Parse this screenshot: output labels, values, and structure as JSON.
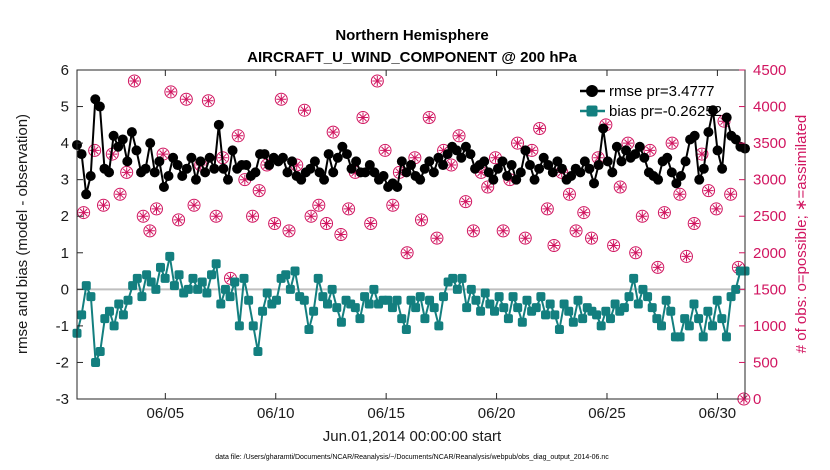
{
  "chart_data": {
    "type": "line",
    "title": "Northern Hemisphere",
    "subtitle": "AIRCRAFT_U_WIND_COMPONENT @ 200 hPa",
    "xlabel": "Jun.01,2014 00:00:00 start",
    "ylabel": "rmse and bias (model - observation)",
    "ylabel_right": "# of obs: o=possible; ∗=assimilated",
    "footer": "data file: /Users/gharamti/Documents/NCAR/Reanalysis/~/Documents/NCAR/Reanalysis/webpub/obs_diag_output_2014-06.nc",
    "xlim": [
      1.0,
      31.25
    ],
    "ylim": [
      -3,
      6
    ],
    "ylim_right": [
      0,
      4500
    ],
    "x_ticks": [
      5,
      10,
      15,
      20,
      25,
      30
    ],
    "x_tick_labels": [
      "06/05",
      "06/10",
      "06/15",
      "06/20",
      "06/25",
      "06/30"
    ],
    "y_ticks": [
      -3,
      -2,
      -1,
      0,
      1,
      2,
      3,
      4,
      5,
      6
    ],
    "y_ticks_right": [
      0,
      500,
      1000,
      1500,
      2000,
      2500,
      3000,
      3500,
      4000,
      4500
    ],
    "zero_line": 0,
    "colors": {
      "rmse": "#000000",
      "bias": "#137f7f",
      "obs": "#d11560",
      "zero": "#bfbfbf"
    },
    "legend": {
      "position": "top-right",
      "entries": [
        "rmse pr=3.4777",
        "bias pr=-0.26252"
      ]
    },
    "series": [
      {
        "name": "rmse",
        "values": [
          3.95,
          3.7,
          2.6,
          3.1,
          5.2,
          5.0,
          3.3,
          3.2,
          4.2,
          3.9,
          4.1,
          3.5,
          4.3,
          3.8,
          3.2,
          3.3,
          4.0,
          3.2,
          3.5,
          2.8,
          3.1,
          3.6,
          3.4,
          3.1,
          3.3,
          3.6,
          3.0,
          3.5,
          3.2,
          3.6,
          3.3,
          4.5,
          3.3,
          3.0,
          3.8,
          3.3,
          3.4,
          3.4,
          3.1,
          3.2,
          3.7,
          3.7,
          3.4,
          3.6,
          3.5,
          3.6,
          3.2,
          3.5,
          3.1,
          3.0,
          3.2,
          3.3,
          3.5,
          3.2,
          3.0,
          3.7,
          3.2,
          3.6,
          3.9,
          3.7,
          3.3,
          3.5,
          3.2,
          3.2,
          3.4,
          3.2,
          3.0,
          3.1,
          2.8,
          2.9,
          2.8,
          3.5,
          3.2,
          3.4,
          3.1,
          3.0,
          3.3,
          3.5,
          3.2,
          3.6,
          3.4,
          3.7,
          3.9,
          3.8,
          3.6,
          3.9,
          3.7,
          3.3,
          3.4,
          3.5,
          3.2,
          3.0,
          3.3,
          3.5,
          3.1,
          3.4,
          3.0,
          3.2,
          3.8,
          3.4,
          3.0,
          3.3,
          3.6,
          3.4,
          3.2,
          3.5,
          3.3,
          3.0,
          3.1,
          3.3,
          3.2,
          3.5,
          3.3,
          2.9,
          3.4,
          4.4,
          3.5,
          3.2,
          3.9,
          3.5,
          3.8,
          3.6,
          3.7,
          3.9,
          3.6,
          3.2,
          3.1,
          3.0,
          3.5,
          3.6,
          3.2,
          2.9,
          3.1,
          3.5,
          4.1,
          4.2,
          3.0,
          3.3,
          4.3,
          4.9,
          3.8,
          3.3,
          4.7,
          4.2,
          4.1,
          3.9,
          3.85
        ],
        "marker": "circle"
      },
      {
        "name": "bias",
        "values": [
          -1.2,
          -0.7,
          0.1,
          -0.2,
          -2.0,
          -1.7,
          -0.8,
          -0.6,
          -1.0,
          -0.4,
          -0.7,
          -0.3,
          0.1,
          0.3,
          -0.2,
          0.4,
          0.2,
          0.0,
          0.6,
          0.3,
          0.9,
          0.1,
          0.4,
          -0.1,
          0.0,
          0.3,
          0.0,
          0.2,
          -0.1,
          0.4,
          0.7,
          -0.4,
          0.0,
          -0.2,
          0.2,
          -1.0,
          0.3,
          -0.3,
          -1.0,
          -1.7,
          -0.6,
          -0.1,
          -0.4,
          -0.3,
          0.3,
          0.4,
          0.0,
          0.5,
          -0.2,
          -0.3,
          -1.1,
          -0.6,
          0.3,
          -0.2,
          -0.4,
          0.0,
          -0.5,
          -0.9,
          -0.3,
          -0.4,
          -0.5,
          -0.8,
          -0.2,
          -0.4,
          0.0,
          -0.4,
          -0.3,
          -0.3,
          -0.5,
          -0.3,
          -0.8,
          -1.1,
          -0.3,
          -0.5,
          -0.2,
          -0.8,
          -0.3,
          -0.5,
          -1.0,
          -0.2,
          0.2,
          0.3,
          0.0,
          0.3,
          -0.5,
          0.0,
          -0.3,
          -0.6,
          -0.1,
          -0.4,
          -0.6,
          -0.2,
          -0.5,
          -0.8,
          -0.2,
          -0.5,
          -0.9,
          -0.3,
          -0.6,
          -0.5,
          -0.2,
          -0.7,
          -0.4,
          -0.7,
          -1.1,
          -0.4,
          -0.6,
          -0.9,
          -0.3,
          -0.8,
          -0.5,
          -0.6,
          -0.7,
          -1.0,
          -0.6,
          -0.8,
          -0.4,
          -0.6,
          -0.5,
          -0.2,
          0.3,
          -0.4,
          0.0,
          -0.2,
          -0.5,
          -0.8,
          -1.0,
          -0.3,
          -0.6,
          -1.3,
          -1.3,
          -0.8,
          -1.0,
          -0.4,
          -0.8,
          -1.3,
          -0.6,
          -1.0,
          -0.3,
          -0.8,
          -1.3,
          -0.2,
          0.0,
          0.5,
          0.5
        ],
        "marker": "square"
      },
      {
        "name": "obs_possible",
        "points": [
          [
            1.3,
            2550
          ],
          [
            1.8,
            3400
          ],
          [
            2.2,
            2650
          ],
          [
            2.6,
            3350
          ],
          [
            2.95,
            2800
          ],
          [
            3.25,
            3100
          ],
          [
            3.6,
            4350
          ],
          [
            4.0,
            2500
          ],
          [
            4.3,
            2300
          ],
          [
            4.6,
            2600
          ],
          [
            4.9,
            3350
          ],
          [
            5.25,
            4200
          ],
          [
            5.6,
            2450
          ],
          [
            5.95,
            4100
          ],
          [
            6.3,
            2650
          ],
          [
            6.6,
            3200
          ],
          [
            6.95,
            4080
          ],
          [
            7.3,
            2500
          ],
          [
            7.6,
            3300
          ],
          [
            7.95,
            1650
          ],
          [
            8.3,
            3600
          ],
          [
            8.6,
            3000
          ],
          [
            8.95,
            2500
          ],
          [
            9.25,
            2850
          ],
          [
            9.6,
            3200
          ],
          [
            9.95,
            2400
          ],
          [
            10.25,
            4100
          ],
          [
            10.6,
            2300
          ],
          [
            10.95,
            3200
          ],
          [
            11.3,
            3950
          ],
          [
            11.6,
            2500
          ],
          [
            11.95,
            2650
          ],
          [
            12.3,
            2400
          ],
          [
            12.6,
            3650
          ],
          [
            12.95,
            2250
          ],
          [
            13.3,
            2600
          ],
          [
            13.6,
            3100
          ],
          [
            13.95,
            3850
          ],
          [
            14.3,
            2400
          ],
          [
            14.6,
            4350
          ],
          [
            14.95,
            3400
          ],
          [
            15.3,
            2650
          ],
          [
            15.6,
            3100
          ],
          [
            15.95,
            2000
          ],
          [
            16.3,
            3300
          ],
          [
            16.6,
            2450
          ],
          [
            16.95,
            3850
          ],
          [
            17.3,
            2200
          ],
          [
            17.6,
            3400
          ],
          [
            17.95,
            3200
          ],
          [
            18.3,
            3600
          ],
          [
            18.6,
            2700
          ],
          [
            18.95,
            2300
          ],
          [
            19.3,
            3100
          ],
          [
            19.6,
            2900
          ],
          [
            19.95,
            3300
          ],
          [
            20.3,
            2300
          ],
          [
            20.6,
            3000
          ],
          [
            20.95,
            3500
          ],
          [
            21.3,
            2200
          ],
          [
            21.6,
            3400
          ],
          [
            21.95,
            3700
          ],
          [
            22.3,
            2600
          ],
          [
            22.6,
            2100
          ],
          [
            22.95,
            3100
          ],
          [
            23.3,
            2800
          ],
          [
            23.6,
            2300
          ],
          [
            23.95,
            2550
          ],
          [
            24.3,
            2200
          ],
          [
            24.6,
            3300
          ],
          [
            24.95,
            3750
          ],
          [
            25.3,
            2100
          ],
          [
            25.6,
            2900
          ],
          [
            25.95,
            3500
          ],
          [
            26.3,
            2000
          ],
          [
            26.6,
            2500
          ],
          [
            26.95,
            3400
          ],
          [
            27.3,
            1800
          ],
          [
            27.6,
            2550
          ],
          [
            27.95,
            3500
          ],
          [
            28.3,
            2800
          ],
          [
            28.6,
            1950
          ],
          [
            28.95,
            2400
          ],
          [
            29.3,
            3350
          ],
          [
            29.6,
            2850
          ],
          [
            29.95,
            2600
          ],
          [
            30.3,
            3800
          ],
          [
            30.6,
            2800
          ],
          [
            30.95,
            1800
          ],
          [
            31.2,
            0
          ]
        ],
        "marker": "circle-open"
      },
      {
        "name": "obs_assimilated",
        "points": [
          [
            1.3,
            2550
          ],
          [
            1.8,
            3400
          ],
          [
            2.2,
            2650
          ],
          [
            2.6,
            3350
          ],
          [
            2.95,
            2800
          ],
          [
            3.25,
            3100
          ],
          [
            3.6,
            4350
          ],
          [
            4.0,
            2500
          ],
          [
            4.3,
            2300
          ],
          [
            4.6,
            2600
          ],
          [
            4.9,
            3350
          ],
          [
            5.25,
            4200
          ],
          [
            5.6,
            2450
          ],
          [
            5.95,
            4100
          ],
          [
            6.3,
            2650
          ],
          [
            6.6,
            3200
          ],
          [
            6.95,
            4080
          ],
          [
            7.3,
            2500
          ],
          [
            7.6,
            3300
          ],
          [
            7.95,
            1650
          ],
          [
            8.3,
            3600
          ],
          [
            8.6,
            3000
          ],
          [
            8.95,
            2500
          ],
          [
            9.25,
            2850
          ],
          [
            9.6,
            3200
          ],
          [
            9.95,
            2400
          ],
          [
            10.25,
            4100
          ],
          [
            10.6,
            2300
          ],
          [
            10.95,
            3200
          ],
          [
            11.3,
            3950
          ],
          [
            11.6,
            2500
          ],
          [
            11.95,
            2650
          ],
          [
            12.3,
            2400
          ],
          [
            12.6,
            3650
          ],
          [
            12.95,
            2250
          ],
          [
            13.3,
            2600
          ],
          [
            13.6,
            3100
          ],
          [
            13.95,
            3850
          ],
          [
            14.3,
            2400
          ],
          [
            14.6,
            4350
          ],
          [
            14.95,
            3400
          ],
          [
            15.3,
            2650
          ],
          [
            15.6,
            3100
          ],
          [
            15.95,
            2000
          ],
          [
            16.3,
            3300
          ],
          [
            16.6,
            2450
          ],
          [
            16.95,
            3850
          ],
          [
            17.3,
            2200
          ],
          [
            17.6,
            3400
          ],
          [
            17.95,
            3200
          ],
          [
            18.3,
            3600
          ],
          [
            18.6,
            2700
          ],
          [
            18.95,
            2300
          ],
          [
            19.3,
            3100
          ],
          [
            19.6,
            2900
          ],
          [
            19.95,
            3300
          ],
          [
            20.3,
            2300
          ],
          [
            20.6,
            3000
          ],
          [
            20.95,
            3500
          ],
          [
            21.3,
            2200
          ],
          [
            21.6,
            3400
          ],
          [
            21.95,
            3700
          ],
          [
            22.3,
            2600
          ],
          [
            22.6,
            2100
          ],
          [
            22.95,
            3100
          ],
          [
            23.3,
            2800
          ],
          [
            23.6,
            2300
          ],
          [
            23.95,
            2550
          ],
          [
            24.3,
            2200
          ],
          [
            24.6,
            3300
          ],
          [
            24.95,
            3750
          ],
          [
            25.3,
            2100
          ],
          [
            25.6,
            2900
          ],
          [
            25.95,
            3500
          ],
          [
            26.3,
            2000
          ],
          [
            26.6,
            2500
          ],
          [
            26.95,
            3400
          ],
          [
            27.3,
            1800
          ],
          [
            27.6,
            2550
          ],
          [
            27.95,
            3500
          ],
          [
            28.3,
            2800
          ],
          [
            28.6,
            1950
          ],
          [
            28.95,
            2400
          ],
          [
            29.3,
            3350
          ],
          [
            29.6,
            2850
          ],
          [
            29.95,
            2600
          ],
          [
            30.3,
            3800
          ],
          [
            30.6,
            2800
          ],
          [
            30.95,
            1800
          ],
          [
            31.2,
            0
          ]
        ],
        "marker": "asterisk"
      }
    ]
  }
}
